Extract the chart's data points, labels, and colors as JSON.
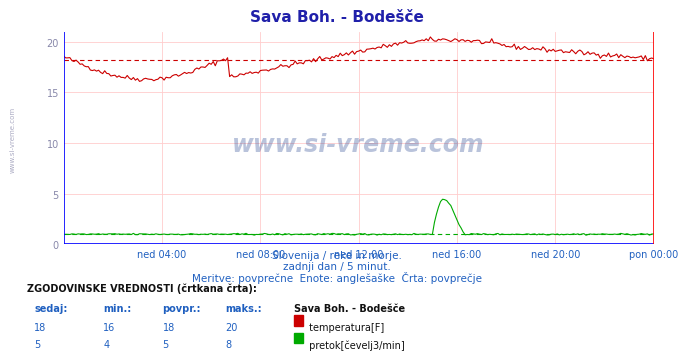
{
  "title": "Sava Boh. - Bodešče",
  "title_color": "#2020aa",
  "bg_color": "#ffffff",
  "plot_bg_color": "#ffffff",
  "grid_color": "#ffcccc",
  "axis_color": "#8888aa",
  "xlabel_color": "#2060c0",
  "ylabel_ticks": [
    0,
    5,
    10,
    15,
    20
  ],
  "ylim": [
    0,
    21
  ],
  "n_points": 289,
  "xtick_labels": [
    "ned 04:00",
    "ned 08:00",
    "ned 12:00",
    "ned 16:00",
    "ned 20:00",
    "pon 00:00"
  ],
  "xtick_positions": [
    48,
    96,
    144,
    192,
    240,
    288
  ],
  "watermark_text": "www.si-vreme.com",
  "subtitle1": "Slovenija / reke in morje.",
  "subtitle2": "zadnji dan / 5 minut.",
  "subtitle3": "Meritve: povprečne  Enote: anglešaške  Črta: povprečje",
  "table_header": "ZGODOVINSKE VREDNOSTI (črtkana črta):",
  "col_headers": [
    "sedaj:",
    "min.:",
    "povpr.:",
    "maks.:"
  ],
  "col_header_station": "Sava Boh. - Bodešče",
  "row1_vals": [
    "18",
    "16",
    "18",
    "20"
  ],
  "row1_label": "temperatura[F]",
  "row1_color": "#cc0000",
  "row2_vals": [
    "5",
    "4",
    "5",
    "8"
  ],
  "row2_label": "pretok[čevelj3/min]",
  "row2_color": "#00aa00",
  "temp_color": "#cc0000",
  "flow_color": "#00aa00",
  "left_text_color": "#8888aa"
}
